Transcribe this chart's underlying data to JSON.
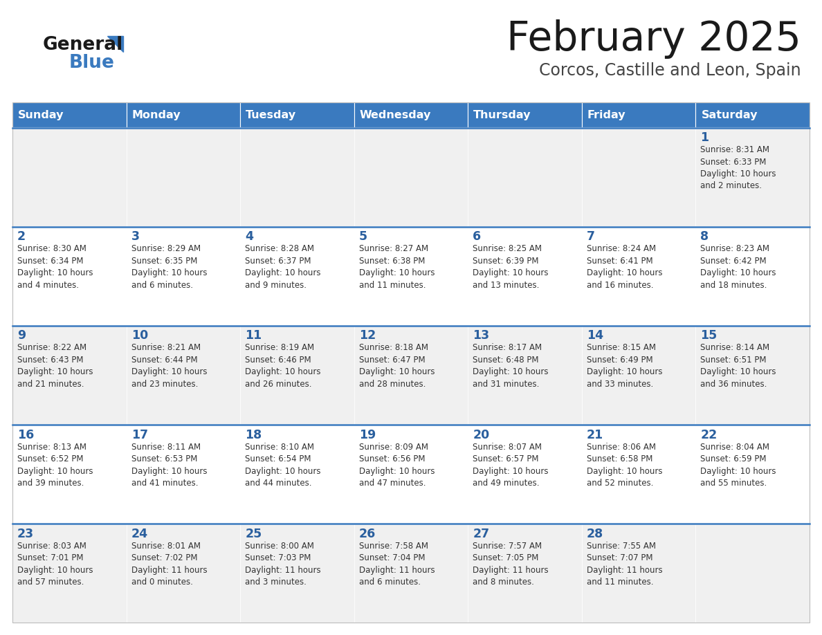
{
  "title": "February 2025",
  "subtitle": "Corcos, Castille and Leon, Spain",
  "header_color": "#3a7abf",
  "header_text_color": "#ffffff",
  "days_of_week": [
    "Sunday",
    "Monday",
    "Tuesday",
    "Wednesday",
    "Thursday",
    "Friday",
    "Saturday"
  ],
  "cell_bg_even": "#f0f0f0",
  "cell_bg_odd": "#ffffff",
  "day_number_color": "#2a5f9e",
  "text_color": "#333333",
  "title_color": "#1a1a1a",
  "subtitle_color": "#444444",
  "separator_color": "#3a7abf",
  "logo_color_general": "#1a1a1a",
  "logo_color_blue": "#3a7abf",
  "calendar_data": [
    [
      {
        "day": null,
        "info": null
      },
      {
        "day": null,
        "info": null
      },
      {
        "day": null,
        "info": null
      },
      {
        "day": null,
        "info": null
      },
      {
        "day": null,
        "info": null
      },
      {
        "day": null,
        "info": null
      },
      {
        "day": 1,
        "info": "Sunrise: 8:31 AM\nSunset: 6:33 PM\nDaylight: 10 hours\nand 2 minutes."
      }
    ],
    [
      {
        "day": 2,
        "info": "Sunrise: 8:30 AM\nSunset: 6:34 PM\nDaylight: 10 hours\nand 4 minutes."
      },
      {
        "day": 3,
        "info": "Sunrise: 8:29 AM\nSunset: 6:35 PM\nDaylight: 10 hours\nand 6 minutes."
      },
      {
        "day": 4,
        "info": "Sunrise: 8:28 AM\nSunset: 6:37 PM\nDaylight: 10 hours\nand 9 minutes."
      },
      {
        "day": 5,
        "info": "Sunrise: 8:27 AM\nSunset: 6:38 PM\nDaylight: 10 hours\nand 11 minutes."
      },
      {
        "day": 6,
        "info": "Sunrise: 8:25 AM\nSunset: 6:39 PM\nDaylight: 10 hours\nand 13 minutes."
      },
      {
        "day": 7,
        "info": "Sunrise: 8:24 AM\nSunset: 6:41 PM\nDaylight: 10 hours\nand 16 minutes."
      },
      {
        "day": 8,
        "info": "Sunrise: 8:23 AM\nSunset: 6:42 PM\nDaylight: 10 hours\nand 18 minutes."
      }
    ],
    [
      {
        "day": 9,
        "info": "Sunrise: 8:22 AM\nSunset: 6:43 PM\nDaylight: 10 hours\nand 21 minutes."
      },
      {
        "day": 10,
        "info": "Sunrise: 8:21 AM\nSunset: 6:44 PM\nDaylight: 10 hours\nand 23 minutes."
      },
      {
        "day": 11,
        "info": "Sunrise: 8:19 AM\nSunset: 6:46 PM\nDaylight: 10 hours\nand 26 minutes."
      },
      {
        "day": 12,
        "info": "Sunrise: 8:18 AM\nSunset: 6:47 PM\nDaylight: 10 hours\nand 28 minutes."
      },
      {
        "day": 13,
        "info": "Sunrise: 8:17 AM\nSunset: 6:48 PM\nDaylight: 10 hours\nand 31 minutes."
      },
      {
        "day": 14,
        "info": "Sunrise: 8:15 AM\nSunset: 6:49 PM\nDaylight: 10 hours\nand 33 minutes."
      },
      {
        "day": 15,
        "info": "Sunrise: 8:14 AM\nSunset: 6:51 PM\nDaylight: 10 hours\nand 36 minutes."
      }
    ],
    [
      {
        "day": 16,
        "info": "Sunrise: 8:13 AM\nSunset: 6:52 PM\nDaylight: 10 hours\nand 39 minutes."
      },
      {
        "day": 17,
        "info": "Sunrise: 8:11 AM\nSunset: 6:53 PM\nDaylight: 10 hours\nand 41 minutes."
      },
      {
        "day": 18,
        "info": "Sunrise: 8:10 AM\nSunset: 6:54 PM\nDaylight: 10 hours\nand 44 minutes."
      },
      {
        "day": 19,
        "info": "Sunrise: 8:09 AM\nSunset: 6:56 PM\nDaylight: 10 hours\nand 47 minutes."
      },
      {
        "day": 20,
        "info": "Sunrise: 8:07 AM\nSunset: 6:57 PM\nDaylight: 10 hours\nand 49 minutes."
      },
      {
        "day": 21,
        "info": "Sunrise: 8:06 AM\nSunset: 6:58 PM\nDaylight: 10 hours\nand 52 minutes."
      },
      {
        "day": 22,
        "info": "Sunrise: 8:04 AM\nSunset: 6:59 PM\nDaylight: 10 hours\nand 55 minutes."
      }
    ],
    [
      {
        "day": 23,
        "info": "Sunrise: 8:03 AM\nSunset: 7:01 PM\nDaylight: 10 hours\nand 57 minutes."
      },
      {
        "day": 24,
        "info": "Sunrise: 8:01 AM\nSunset: 7:02 PM\nDaylight: 11 hours\nand 0 minutes."
      },
      {
        "day": 25,
        "info": "Sunrise: 8:00 AM\nSunset: 7:03 PM\nDaylight: 11 hours\nand 3 minutes."
      },
      {
        "day": 26,
        "info": "Sunrise: 7:58 AM\nSunset: 7:04 PM\nDaylight: 11 hours\nand 6 minutes."
      },
      {
        "day": 27,
        "info": "Sunrise: 7:57 AM\nSunset: 7:05 PM\nDaylight: 11 hours\nand 8 minutes."
      },
      {
        "day": 28,
        "info": "Sunrise: 7:55 AM\nSunset: 7:07 PM\nDaylight: 11 hours\nand 11 minutes."
      },
      {
        "day": null,
        "info": null
      }
    ]
  ]
}
